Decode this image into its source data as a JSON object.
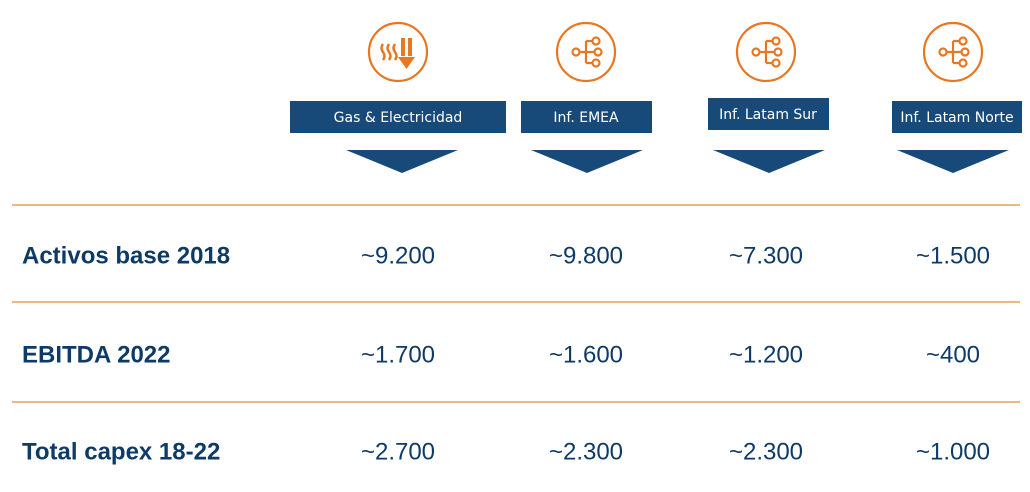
{
  "columns": [
    {
      "label": "Gas & Electricidad"
    },
    {
      "label": "Inf. EMEA"
    },
    {
      "label": "Inf. Latam Sur"
    },
    {
      "label": "Inf. Latam Norte"
    }
  ],
  "rows": [
    {
      "label": "Activos base 2018",
      "values": [
        "~9.200",
        "~9.800",
        "~7.300",
        "~1.500"
      ]
    },
    {
      "label": "EBITDA 2022",
      "values": [
        "~1.700",
        "~1.600",
        "~1.200",
        "~400"
      ]
    },
    {
      "label": "Total capex 18-22",
      "values": [
        "~2.700",
        "~2.300",
        "~2.300",
        "~1.000"
      ]
    }
  ]
}
